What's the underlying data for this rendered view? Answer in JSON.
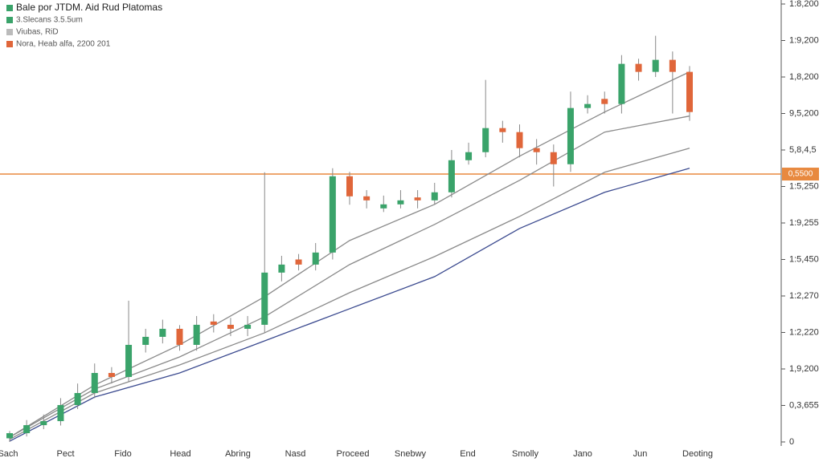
{
  "chart_data": {
    "type": "candlestick",
    "legend": [
      {
        "name": "Bale por JTDM. Aid Rud Platomas",
        "color": "#3aa36a"
      },
      {
        "name": "3.Slecans 3.5.5um",
        "color": "#3aa36a"
      },
      {
        "name": "Viubas, RiD",
        "color": "#bbbbbb"
      },
      {
        "name": "Nora, Heab alfa, 2200 201",
        "color": "#e0663a"
      }
    ],
    "x_labels": [
      "Sach",
      "Pect",
      "Fido",
      "Head",
      "Abring",
      "Nasd",
      "Proceed",
      "Snebwy",
      "End",
      "Smolly",
      "Jano",
      "Jun",
      "Deoting"
    ],
    "up_color": "#3aa36a",
    "down_color": "#e0663a",
    "open": [
      10,
      24,
      46,
      57,
      101,
      134,
      189,
      178,
      266,
      288,
      310,
      266,
      330,
      321,
      310,
      321,
      464,
      500,
      486,
      519,
      728,
      673,
      640,
      651,
      670,
      662,
      684,
      772,
      794,
      860,
      849,
      805,
      794,
      761,
      915,
      940,
      926,
      1036,
      1014,
      1047,
      1014
    ],
    "high": [
      30,
      60,
      75,
      120,
      160,
      215,
      205,
      387,
      310,
      335,
      320,
      345,
      350,
      340,
      345,
      739,
      510,
      515,
      545,
      750,
      740,
      690,
      675,
      690,
      690,
      710,
      800,
      820,
      992,
      880,
      870,
      830,
      815,
      960,
      950,
      960,
      1060,
      1050,
      1113,
      1070,
      1030
    ],
    "low": [
      0,
      15,
      35,
      45,
      90,
      120,
      160,
      165,
      245,
      270,
      250,
      250,
      300,
      290,
      290,
      300,
      440,
      470,
      470,
      500,
      650,
      640,
      630,
      640,
      640,
      650,
      670,
      760,
      780,
      820,
      780,
      760,
      700,
      740,
      900,
      900,
      900,
      990,
      1000,
      900,
      880
    ],
    "close": [
      24,
      46,
      57,
      101,
      134,
      189,
      178,
      266,
      288,
      310,
      266,
      321,
      321,
      310,
      321,
      464,
      486,
      486,
      519,
      728,
      673,
      662,
      651,
      662,
      662,
      684,
      772,
      794,
      860,
      849,
      805,
      794,
      761,
      915,
      926,
      926,
      1036,
      1014,
      1047,
      1014,
      904
    ],
    "lines_x": [
      0,
      5,
      10,
      15,
      20,
      25,
      30,
      35,
      40
    ],
    "lines": [
      {
        "color": "#8a8a8a",
        "values": [
          13,
          156,
          266,
          398,
          552,
          651,
          783,
          904,
          1014
        ]
      },
      {
        "color": "#8a8a8a",
        "values": [
          13,
          145,
          233,
          343,
          486,
          596,
          717,
          849,
          893
        ]
      },
      {
        "color": "#8a8a8a",
        "values": [
          7,
          134,
          211,
          299,
          409,
          508,
          618,
          739,
          805
        ]
      },
      {
        "color": "#3b4a8f",
        "values": [
          2,
          123,
          189,
          277,
          365,
          453,
          585,
          684,
          750
        ]
      }
    ],
    "hline": {
      "value": 734,
      "label": "0,5500",
      "color": "#e8893f"
    },
    "ylim": [
      0,
      1200
    ],
    "yticks": [
      {
        "value": 1200,
        "label": "1:8,200"
      },
      {
        "value": 1100,
        "label": "1:9,200"
      },
      {
        "value": 1000,
        "label": "1,8,200"
      },
      {
        "value": 900,
        "label": "9,5,200"
      },
      {
        "value": 800,
        "label": "5,8,4,5"
      },
      {
        "value": 700,
        "label": "1:5,250"
      },
      {
        "value": 600,
        "label": "1:9,255"
      },
      {
        "value": 500,
        "label": "1:5,450"
      },
      {
        "value": 400,
        "label": "1:2,270"
      },
      {
        "value": 300,
        "label": "1:2,220"
      },
      {
        "value": 200,
        "label": "1,9,200"
      },
      {
        "value": 100,
        "label": "0,3,655"
      },
      0
    ]
  }
}
